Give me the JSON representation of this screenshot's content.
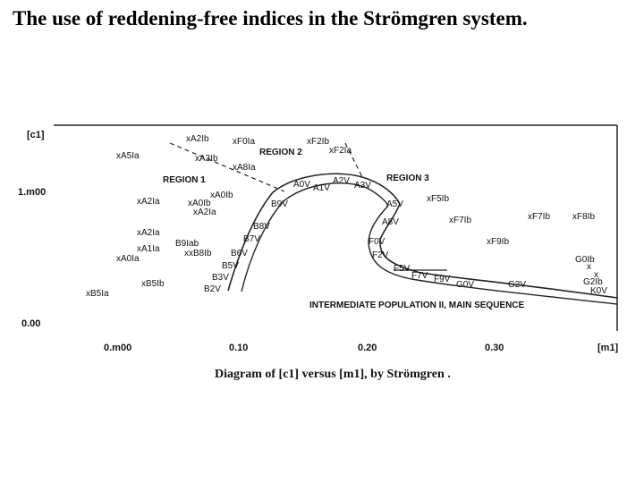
{
  "title": "The use of reddening-free indices in the Strömgren system.",
  "figure": {
    "y_axis_label": "[c1]",
    "x_axis_label": "[m1]",
    "y_ticks": [
      "1.m00",
      "0.00"
    ],
    "x_ticks": [
      "0.m00",
      "0.10",
      "0.20",
      "0.30"
    ],
    "regions": [
      "REGION 1",
      "REGION 2",
      "REGION 3"
    ],
    "sequence_label": "INTERMEDIATE POPULATION II, MAIN SEQUENCE",
    "caption": "Diagram of [c1] versus [m1], by Strömgren .",
    "star_labels": [
      "xA2Ib",
      "xF0Ia",
      "xF2Ib",
      "xF2Ia",
      "xA5Ia",
      "xA3Ib",
      "xA8Ia",
      "xA0Ib",
      "xA2Ia",
      "xA0Ib",
      "xA2Ia",
      "xA2Ia",
      "xA1Ia",
      "xA0Ia",
      "B9Iab",
      "xxB8Ib",
      "xB5Ib",
      "xB5Ia",
      "A0V",
      "A1V",
      "A2V",
      "A3V",
      "B9V",
      "B8V",
      "B7V",
      "B6V",
      "B5V",
      "B3V",
      "B2V",
      "A5V",
      "A8V",
      "F0V",
      "F2V",
      "F5V",
      "F7V",
      "F9V",
      "G0V",
      "G2V",
      "K0V",
      "xF5Ib",
      "xF7Ib",
      "xF7Ib",
      "xF8Ib",
      "xF9Ib",
      "G0Ib",
      "G2Ib"
    ]
  }
}
